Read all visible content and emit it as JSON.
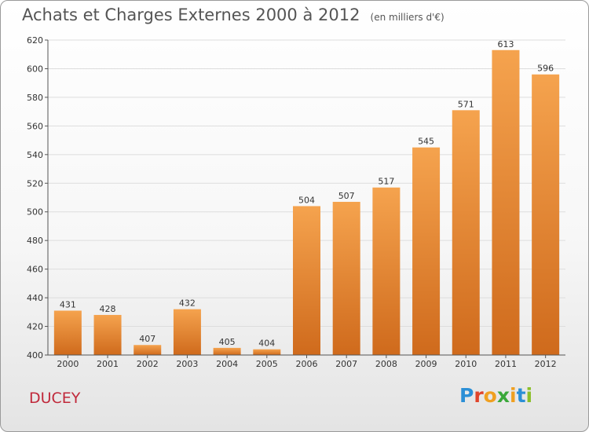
{
  "header": {
    "title": "Achats et Charges Externes 2000 à 2012",
    "unit": "(en milliers d'€)"
  },
  "commune": "DUCEY",
  "logo": {
    "letters": [
      "P",
      "r",
      "o",
      "x",
      "i",
      "t",
      "i"
    ],
    "colors": [
      "#2b8fd6",
      "#e0452b",
      "#f0a020",
      "#3aa83a",
      "#f0a020",
      "#2b8fd6",
      "#8bbf2a"
    ]
  },
  "colors": {
    "bar_top": "#f5a34e",
    "bar_bottom": "#cf6a1c",
    "axis": "#555555",
    "grid": "#dddddd"
  },
  "chart_data": {
    "type": "bar",
    "title": "Achats et Charges Externes 2000 à 2012",
    "subtitle": "(en milliers d'€)",
    "categories": [
      "2000",
      "2001",
      "2002",
      "2003",
      "2004",
      "2005",
      "2006",
      "2007",
      "2008",
      "2009",
      "2010",
      "2011",
      "2012"
    ],
    "values": [
      431,
      428,
      407,
      432,
      405,
      404,
      504,
      507,
      517,
      545,
      571,
      613,
      596
    ],
    "ylim": [
      400,
      620
    ],
    "yticks": [
      400,
      420,
      440,
      460,
      480,
      500,
      520,
      540,
      560,
      580,
      600,
      620
    ],
    "grid": true,
    "legend": "none"
  }
}
